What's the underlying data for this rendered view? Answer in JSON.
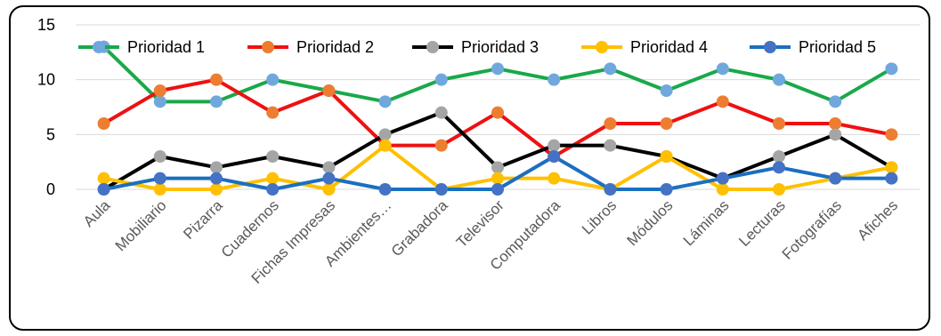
{
  "chart_data": {
    "type": "line",
    "categories": [
      "Aula",
      "Mobiliario",
      "Pizarra",
      "Cuadernos",
      "Fichas Impresas",
      "Ambientes…",
      "Grabadora",
      "Televisor",
      "Computadora",
      "Libros",
      "Módulos",
      "Láminas",
      "Lecturas",
      "Fotografías",
      "Afiches"
    ],
    "yticks": [
      "0",
      "5",
      "10",
      "15"
    ],
    "ylim": [
      0,
      15
    ],
    "grid": true,
    "legend_position": "top",
    "series": [
      {
        "name": "Prioridad 1",
        "color": "#1aa84a",
        "values": [
          13,
          8,
          8,
          10,
          9,
          8,
          10,
          11,
          10,
          11,
          9,
          11,
          10,
          8,
          11
        ]
      },
      {
        "name": "Prioridad 2",
        "color": "#ee1111",
        "values": [
          6,
          9,
          10,
          7,
          9,
          4,
          4,
          7,
          3,
          6,
          6,
          8,
          6,
          6,
          5
        ]
      },
      {
        "name": "Prioridad 3",
        "color": "#000000",
        "values": [
          0,
          3,
          2,
          3,
          2,
          5,
          7,
          2,
          4,
          4,
          3,
          1,
          3,
          5,
          2
        ]
      },
      {
        "name": "Prioridad 4",
        "color": "#ffc000",
        "values": [
          1,
          0,
          0,
          1,
          0,
          4,
          0,
          1,
          1,
          0,
          3,
          0,
          0,
          1,
          2
        ]
      },
      {
        "name": "Prioridad 5",
        "color": "#1a6fc0",
        "values": [
          0,
          1,
          1,
          0,
          1,
          0,
          0,
          0,
          3,
          0,
          0,
          1,
          2,
          1,
          1
        ]
      }
    ],
    "marker_colors": {
      "Prioridad 1": "#70a8de",
      "Prioridad 2": "#ed7d31",
      "Prioridad 3": "#a5a5a5",
      "Prioridad 4": "#ffc000",
      "Prioridad 5": "#4472c4"
    }
  }
}
